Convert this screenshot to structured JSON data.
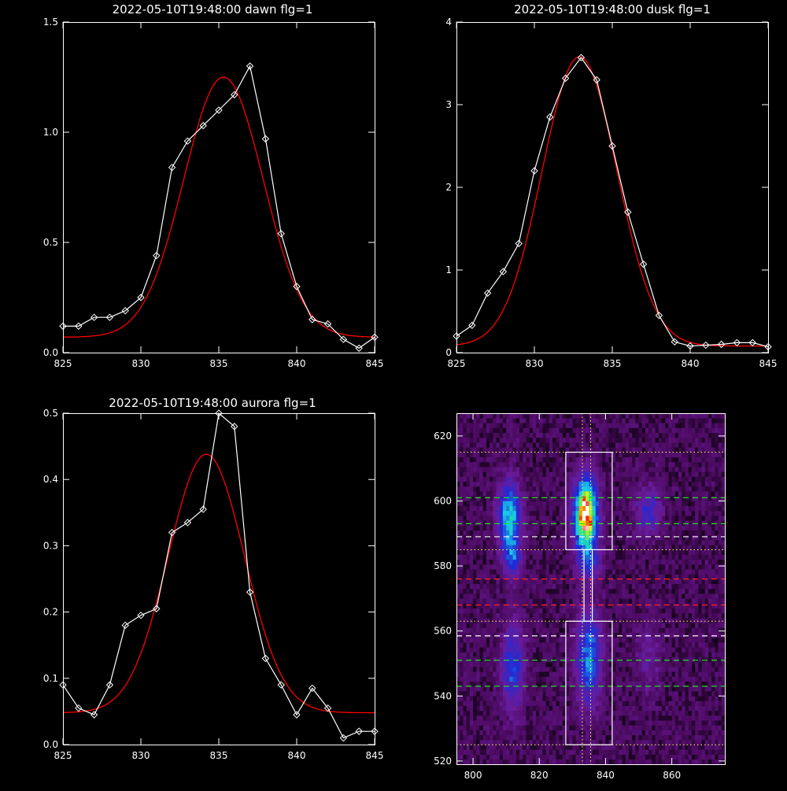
{
  "chart_data": [
    {
      "type": "line",
      "title": "2022-05-10T19:48:00 dawn flg=1",
      "xlim": [
        825,
        845
      ],
      "ylim": [
        0,
        1.5
      ],
      "x_ticks": [
        "825",
        "830",
        "835",
        "840",
        "845"
      ],
      "y_ticks": [
        "0.0",
        "0.5",
        "1.0",
        "1.5"
      ],
      "series": [
        {
          "role": "data",
          "color": "#ffffff",
          "marker": "diamond",
          "x": [
            825,
            826,
            827,
            828,
            829,
            830,
            831,
            832,
            833,
            834,
            835,
            836,
            837,
            838,
            839,
            840,
            841,
            842,
            843,
            844,
            845
          ],
          "y": [
            0.12,
            0.12,
            0.16,
            0.16,
            0.19,
            0.25,
            0.44,
            0.84,
            0.96,
            1.03,
            1.1,
            1.17,
            1.3,
            0.97,
            0.54,
            0.3,
            0.15,
            0.13,
            0.06,
            0.02,
            0.07
          ]
        },
        {
          "role": "fit",
          "color": "#ff0000",
          "gaussian": {
            "amp": 1.18,
            "center": 835.3,
            "sigma": 2.55,
            "base": 0.07
          }
        }
      ]
    },
    {
      "type": "line",
      "title": "2022-05-10T19:48:00 dusk flg=1",
      "xlim": [
        825,
        845
      ],
      "ylim": [
        0,
        4
      ],
      "x_ticks": [
        "825",
        "830",
        "835",
        "840",
        "845"
      ],
      "y_ticks": [
        "0",
        "1",
        "2",
        "3",
        "4"
      ],
      "series": [
        {
          "role": "data",
          "color": "#ffffff",
          "marker": "diamond",
          "x": [
            825,
            826,
            827,
            828,
            829,
            830,
            831,
            832,
            833,
            834,
            835,
            836,
            837,
            838,
            839,
            840,
            841,
            842,
            843,
            844,
            845
          ],
          "y": [
            0.2,
            0.33,
            0.72,
            0.98,
            1.32,
            2.2,
            2.85,
            3.32,
            3.57,
            3.3,
            2.5,
            1.7,
            1.07,
            0.45,
            0.13,
            0.08,
            0.09,
            0.1,
            0.12,
            0.12,
            0.07
          ]
        },
        {
          "role": "fit",
          "color": "#ff0000",
          "gaussian": {
            "amp": 3.5,
            "center": 832.9,
            "sigma": 2.4,
            "base": 0.08
          }
        }
      ]
    },
    {
      "type": "line",
      "title": "2022-05-10T19:48:00 aurora flg=1",
      "xlim": [
        825,
        845
      ],
      "ylim": [
        0,
        0.5
      ],
      "x_ticks": [
        "825",
        "830",
        "835",
        "840",
        "845"
      ],
      "y_ticks": [
        "0.0",
        "0.1",
        "0.2",
        "0.3",
        "0.4",
        "0.5"
      ],
      "series": [
        {
          "role": "data",
          "color": "#ffffff",
          "marker": "diamond",
          "x": [
            825,
            826,
            827,
            828,
            829,
            830,
            831,
            832,
            833,
            834,
            835,
            836,
            837,
            838,
            839,
            840,
            841,
            842,
            843,
            844,
            845
          ],
          "y": [
            0.09,
            0.055,
            0.045,
            0.09,
            0.18,
            0.195,
            0.205,
            0.32,
            0.335,
            0.355,
            0.5,
            0.48,
            0.23,
            0.13,
            0.09,
            0.045,
            0.085,
            0.055,
            0.01,
            0.02,
            0.02
          ]
        },
        {
          "role": "fit",
          "color": "#ff0000",
          "gaussian": {
            "amp": 0.39,
            "center": 834.2,
            "sigma": 2.45,
            "base": 0.048
          }
        }
      ]
    },
    {
      "type": "heatmap",
      "xlim": [
        795,
        876
      ],
      "ylim": [
        519,
        627
      ],
      "x_ticks": [
        "800",
        "820",
        "840",
        "860"
      ],
      "y_ticks": [
        "520",
        "540",
        "560",
        "580",
        "600",
        "620"
      ],
      "colormap": [
        "#000000",
        "#4a0a5e",
        "#6a1b9a",
        "#1e2bd8",
        "#18c8f0",
        "#18e090",
        "#f0f000",
        "#ff0000",
        "#ffffff"
      ],
      "blobs": [
        {
          "x": 811,
          "y": 595,
          "sx": 2.2,
          "sy": 7,
          "amp": 0.55
        },
        {
          "x": 812,
          "y": 582,
          "sx": 1.8,
          "sy": 4,
          "amp": 0.3
        },
        {
          "x": 834,
          "y": 596,
          "sx": 2.3,
          "sy": 7,
          "amp": 1.0
        },
        {
          "x": 835,
          "y": 582,
          "sx": 2.5,
          "sy": 4,
          "amp": 0.25
        },
        {
          "x": 853,
          "y": 597,
          "sx": 2.5,
          "sy": 5,
          "amp": 0.25
        },
        {
          "x": 812,
          "y": 549,
          "sx": 2.3,
          "sy": 9,
          "amp": 0.32
        },
        {
          "x": 835,
          "y": 552,
          "sx": 2.5,
          "sy": 10,
          "amp": 0.42
        },
        {
          "x": 853,
          "y": 552,
          "sx": 2.5,
          "sy": 7,
          "amp": 0.12
        }
      ],
      "boxes": [
        {
          "x": [
            828,
            842
          ],
          "y": [
            585,
            615
          ],
          "color": "#ffffff"
        },
        {
          "x": [
            828,
            842
          ],
          "y": [
            525,
            563
          ],
          "color": "#ffffff"
        },
        {
          "x": [
            833.5,
            836
          ],
          "y": [
            563,
            585
          ],
          "color": "#ffffff"
        }
      ],
      "dotted_hlines": [
        {
          "y": 615,
          "color": "#ffff66"
        },
        {
          "y": 585,
          "color": "#ffff66"
        },
        {
          "y": 563,
          "color": "#ffff66"
        },
        {
          "y": 525,
          "color": "#ffff66"
        }
      ],
      "dotted_vlines": [
        {
          "x": 833,
          "color": "#ffff66"
        },
        {
          "x": 835.5,
          "color": "#ffff66"
        }
      ],
      "dashed_hlines": [
        {
          "y": 601,
          "color": "#22dd22"
        },
        {
          "y": 593,
          "color": "#22dd22"
        },
        {
          "y": 589,
          "color": "#ffffff"
        },
        {
          "y": 576,
          "color": "#ff2222"
        },
        {
          "y": 568,
          "color": "#ff2222"
        },
        {
          "y": 558.5,
          "color": "#ffffff"
        },
        {
          "y": 551,
          "color": "#22dd22"
        },
        {
          "y": 543,
          "color": "#22dd22"
        }
      ]
    }
  ]
}
